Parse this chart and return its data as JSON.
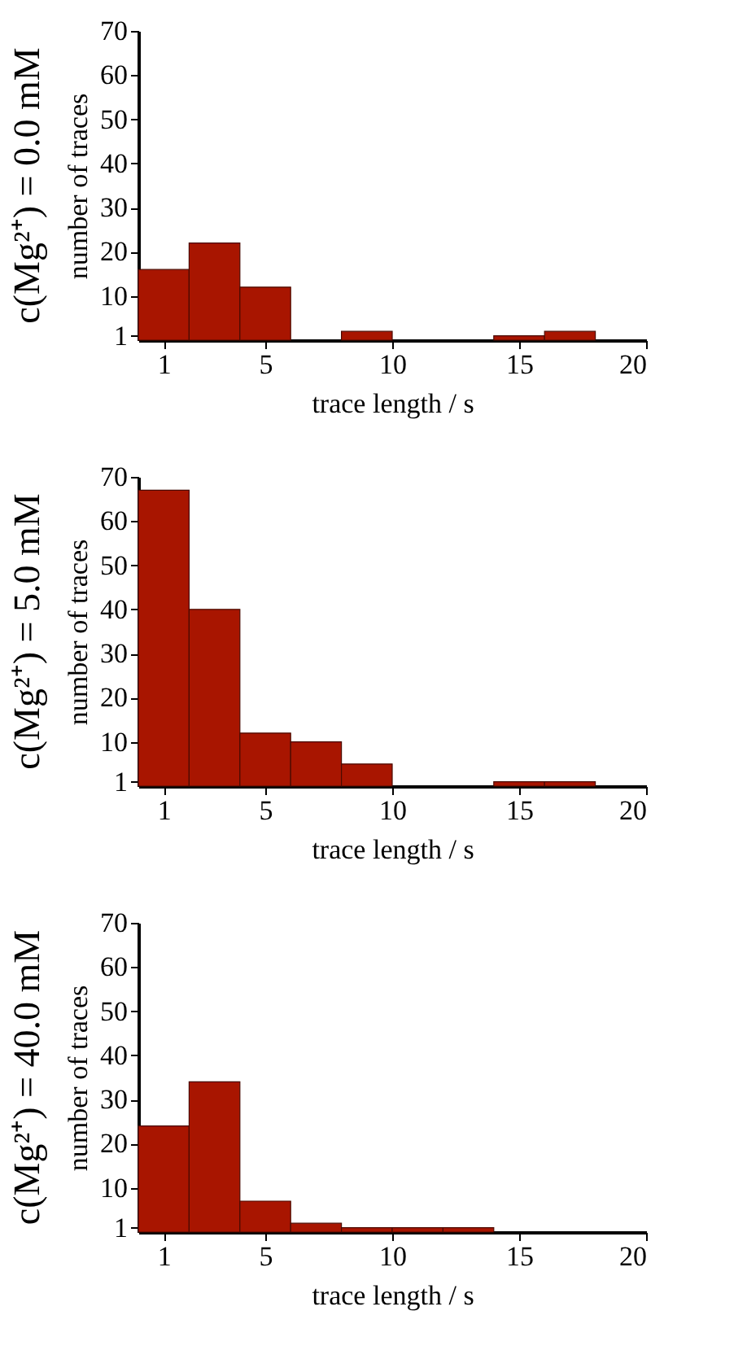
{
  "chart_data": [
    {
      "type": "histogram",
      "title": "c(Mg²⁺) = 0.0 mM",
      "xlabel": "trace length / s",
      "ylabel": "number of traces",
      "bins": [
        0,
        2,
        4,
        6,
        8,
        10,
        12,
        14,
        16,
        18,
        20
      ],
      "values": [
        16,
        22,
        12,
        0,
        2,
        0,
        0,
        1,
        2,
        0
      ],
      "color": "#a81500",
      "xlim": [
        0,
        20
      ],
      "ylim": [
        0,
        70
      ],
      "xticks": [
        1,
        5,
        10,
        15,
        20
      ],
      "yticks": [
        1,
        10,
        20,
        30,
        40,
        50,
        60,
        70
      ],
      "grid": false
    },
    {
      "type": "histogram",
      "title": "c(Mg²⁺) = 5.0 mM",
      "xlabel": "trace length / s",
      "ylabel": "number of traces",
      "bins": [
        0,
        2,
        4,
        6,
        8,
        10,
        12,
        14,
        16,
        18,
        20
      ],
      "values": [
        67,
        40,
        12,
        10,
        5,
        0,
        0,
        1,
        1,
        0
      ],
      "color": "#a81500",
      "xlim": [
        0,
        20
      ],
      "ylim": [
        0,
        70
      ],
      "xticks": [
        1,
        5,
        10,
        15,
        20
      ],
      "yticks": [
        1,
        10,
        20,
        30,
        40,
        50,
        60,
        70
      ],
      "grid": false
    },
    {
      "type": "histogram",
      "title": "c(Mg²⁺) = 40.0 mM",
      "xlabel": "trace length / s",
      "ylabel": "number of traces",
      "bins": [
        0,
        2,
        4,
        6,
        8,
        10,
        12,
        14,
        16,
        18,
        20
      ],
      "values": [
        24,
        34,
        7,
        2,
        1,
        1,
        1,
        0,
        0,
        0
      ],
      "color": "#a81500",
      "xlim": [
        0,
        20
      ],
      "ylim": [
        0,
        70
      ],
      "xticks": [
        1,
        5,
        10,
        15,
        20
      ],
      "yticks": [
        1,
        10,
        20,
        30,
        40,
        50,
        60,
        70
      ],
      "grid": false
    }
  ]
}
